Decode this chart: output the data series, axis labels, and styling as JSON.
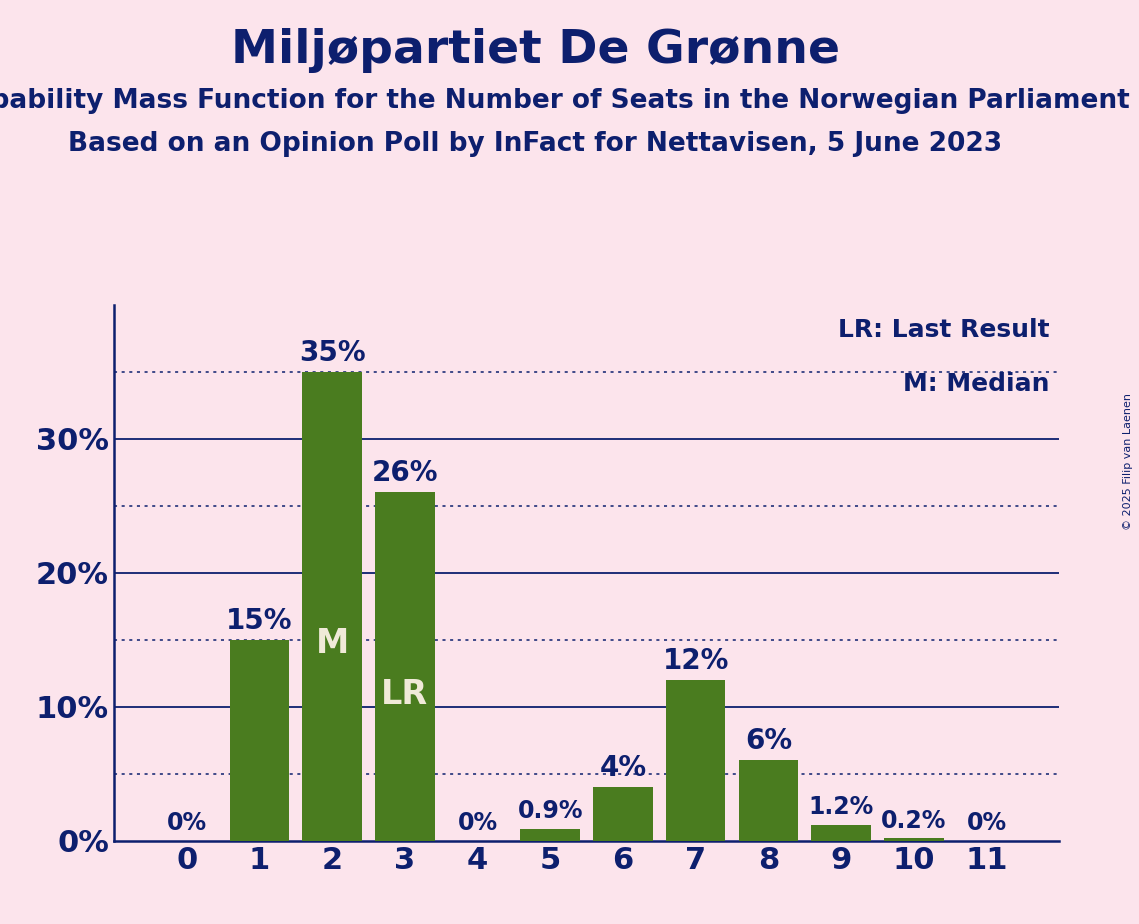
{
  "title": "Miljøpartiet De Grønne",
  "subtitle1": "Probability Mass Function for the Number of Seats in the Norwegian Parliament",
  "subtitle2": "Based on an Opinion Poll by InFact for Nettavisen, 5 June 2023",
  "copyright": "© 2025 Filip van Laenen",
  "categories": [
    0,
    1,
    2,
    3,
    4,
    5,
    6,
    7,
    8,
    9,
    10,
    11
  ],
  "values": [
    0.0,
    15.0,
    35.0,
    26.0,
    0.0,
    0.9,
    4.0,
    12.0,
    6.0,
    1.2,
    0.2,
    0.0
  ],
  "bar_color": "#4a7c1f",
  "background_color": "#fce4ec",
  "text_color": "#0d1f6e",
  "bar_label_color_outside": "#0d1f6e",
  "bar_label_color_inside": "#f0ead8",
  "grid_color": "#0d1f6e",
  "axis_color": "#0d1f6e",
  "ylim": [
    0,
    40
  ],
  "yticks": [
    0,
    10,
    20,
    30
  ],
  "median_bar": 2,
  "last_result_bar": 3,
  "legend_lr": "LR: Last Result",
  "legend_m": "M: Median",
  "title_fontsize": 34,
  "subtitle_fontsize": 19,
  "tick_fontsize": 22,
  "bar_label_fontsize_small": 17,
  "bar_label_fontsize_large": 20,
  "inside_label_fontsize": 24,
  "legend_fontsize": 18,
  "solid_lines": [
    10.0,
    20.0,
    30.0
  ],
  "dotted_lines": [
    5.0,
    15.0,
    25.0,
    35.0
  ]
}
